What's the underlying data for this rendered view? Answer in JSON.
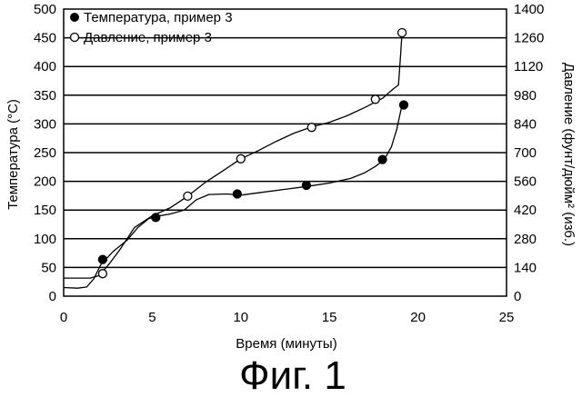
{
  "chart_data": {
    "type": "line",
    "title": "",
    "caption": "Фиг. 1",
    "xlabel": "Время (минуты)",
    "ylabel_left": "Температура (°C)",
    "ylabel_right": "Давление (фунт/дюйм² (изб.)",
    "xlim": [
      0,
      25
    ],
    "ylim_left": [
      0,
      500
    ],
    "ylim_right": [
      0,
      1400
    ],
    "x_ticks": [
      "0",
      "5",
      "10",
      "15",
      "20",
      "25"
    ],
    "y_left_ticks": [
      "0",
      "50",
      "100",
      "150",
      "200",
      "250",
      "300",
      "350",
      "400",
      "450",
      "500"
    ],
    "y_right_ticks": [
      "0",
      "140",
      "280",
      "420",
      "560",
      "700",
      "840",
      "980",
      "1120",
      "1260",
      "1400"
    ],
    "grid": "horizontal",
    "legend_position": "top-left",
    "series": [
      {
        "name": "Температура, пример 3",
        "axis": "left",
        "marker": "filled-circle",
        "points": [
          [
            2.2,
            64
          ],
          [
            5.2,
            137
          ],
          [
            9.8,
            178
          ],
          [
            13.7,
            193
          ],
          [
            18.0,
            238
          ],
          [
            19.2,
            333
          ]
        ],
        "curve": [
          [
            0,
            15
          ],
          [
            0.8,
            14
          ],
          [
            1.3,
            16
          ],
          [
            1.7,
            30
          ],
          [
            2.1,
            55
          ],
          [
            2.8,
            78
          ],
          [
            3.6,
            98
          ],
          [
            4.2,
            120
          ],
          [
            4.8,
            135
          ],
          [
            5.2,
            139
          ],
          [
            6.0,
            143
          ],
          [
            6.8,
            150
          ],
          [
            7.5,
            168
          ],
          [
            8.2,
            177
          ],
          [
            9.2,
            178
          ],
          [
            10.0,
            176
          ],
          [
            11.0,
            180
          ],
          [
            12.5,
            186
          ],
          [
            13.7,
            191
          ],
          [
            15.0,
            197
          ],
          [
            16.2,
            205
          ],
          [
            17.0,
            215
          ],
          [
            17.6,
            226
          ],
          [
            18.1,
            238
          ],
          [
            18.5,
            260
          ],
          [
            18.8,
            290
          ],
          [
            19.1,
            333
          ]
        ]
      },
      {
        "name": "Давление, пример 3",
        "axis": "right",
        "marker": "open-circle",
        "points": [
          [
            2.2,
            110
          ],
          [
            7.0,
            488
          ],
          [
            10.0,
            670
          ],
          [
            14.0,
            823
          ],
          [
            17.6,
            960
          ],
          [
            19.1,
            1285
          ]
        ],
        "curve": [
          [
            0,
            88
          ],
          [
            1.5,
            88
          ],
          [
            2.0,
            100
          ],
          [
            2.6,
            160
          ],
          [
            3.2,
            230
          ],
          [
            4.0,
            335
          ],
          [
            5.0,
            392
          ],
          [
            6.0,
            430
          ],
          [
            7.0,
            488
          ],
          [
            8.0,
            555
          ],
          [
            9.0,
            612
          ],
          [
            10.0,
            670
          ],
          [
            11.0,
            710
          ],
          [
            12.0,
            755
          ],
          [
            13.0,
            795
          ],
          [
            14.0,
            825
          ],
          [
            15.0,
            848
          ],
          [
            16.0,
            880
          ],
          [
            17.0,
            920
          ],
          [
            18.0,
            965
          ],
          [
            18.6,
            1010
          ],
          [
            18.9,
            1030
          ],
          [
            19.0,
            1150
          ],
          [
            19.1,
            1285
          ]
        ]
      }
    ]
  }
}
